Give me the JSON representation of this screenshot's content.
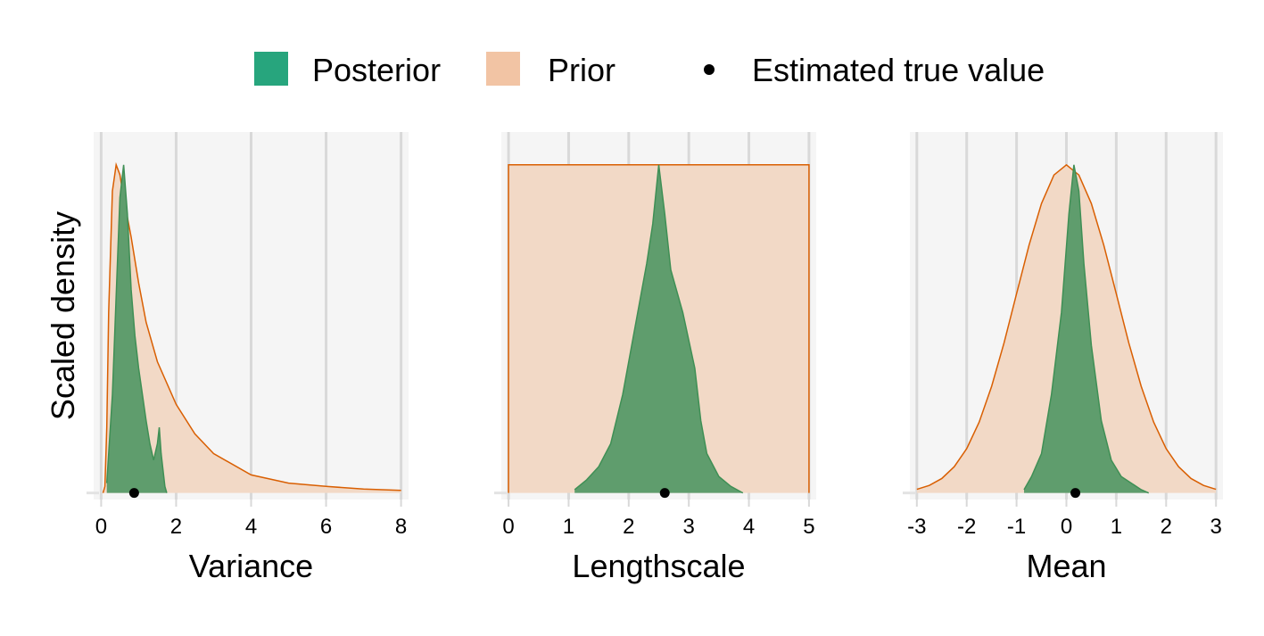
{
  "legend": {
    "entries": [
      {
        "label": "Posterior",
        "color": "#27a57d",
        "shape": "square"
      },
      {
        "label": "Prior",
        "color": "#f2c4a4",
        "shape": "square"
      },
      {
        "label": "Estimated true value",
        "color": "#000000",
        "shape": "dot"
      }
    ]
  },
  "chart_data": [
    {
      "type": "density",
      "x_label": "Variance",
      "y_label": "Scaled density",
      "xlim": [
        -0.2,
        8.2
      ],
      "ylim": [
        -0.02,
        1.1
      ],
      "xticks": [
        0,
        2,
        4,
        6,
        8
      ],
      "grid": true,
      "series": [
        {
          "color": "#f2d9c6",
          "line_color": "#d95f02",
          "x": [
            0.05,
            0.1,
            0.15,
            0.2,
            0.3,
            0.4,
            0.5,
            0.6,
            0.8,
            1.0,
            1.2,
            1.5,
            2,
            2.5,
            3,
            4,
            5,
            6,
            7,
            8
          ],
          "values": [
            0,
            0.02,
            0.2,
            0.55,
            0.92,
            1.0,
            0.97,
            0.9,
            0.78,
            0.64,
            0.52,
            0.4,
            0.27,
            0.18,
            0.12,
            0.055,
            0.03,
            0.02,
            0.012,
            0.008
          ]
        },
        {
          "color": "#5f9d6d",
          "line_color": "#3f8f55",
          "x": [
            0.15,
            0.3,
            0.4,
            0.5,
            0.6,
            0.7,
            0.8,
            0.9,
            1.0,
            1.1,
            1.2,
            1.3,
            1.4,
            1.5,
            1.55,
            1.6,
            1.7,
            1.75
          ],
          "values": [
            0.03,
            0.3,
            0.6,
            0.9,
            1.0,
            0.85,
            0.62,
            0.48,
            0.38,
            0.3,
            0.22,
            0.15,
            0.1,
            0.15,
            0.2,
            0.12,
            0.02,
            0
          ]
        }
      ],
      "points": {
        "color": "#000000",
        "x": [
          0.88
        ],
        "values": [
          0
        ]
      }
    },
    {
      "type": "density",
      "x_label": "Lengthscale",
      "xlim": [
        -0.12,
        5.12
      ],
      "ylim": [
        -0.02,
        1.1
      ],
      "xticks": [
        0,
        1,
        2,
        3,
        4,
        5
      ],
      "grid": true,
      "series": [
        {
          "color": "#f2d9c6",
          "line_color": "#d95f02",
          "x": [
            0,
            0,
            5,
            5
          ],
          "values": [
            0,
            1,
            1,
            0
          ]
        },
        {
          "color": "#5f9d6d",
          "line_color": "#3f8f55",
          "x": [
            1.1,
            1.3,
            1.5,
            1.7,
            1.9,
            2.1,
            2.3,
            2.4,
            2.5,
            2.6,
            2.7,
            2.9,
            3.1,
            3.2,
            3.3,
            3.5,
            3.7,
            3.9
          ],
          "values": [
            0.01,
            0.04,
            0.08,
            0.15,
            0.3,
            0.5,
            0.7,
            0.82,
            1.0,
            0.85,
            0.68,
            0.55,
            0.38,
            0.22,
            0.12,
            0.05,
            0.02,
            0
          ]
        }
      ],
      "points": {
        "color": "#000000",
        "x": [
          2.6
        ],
        "values": [
          0
        ]
      }
    },
    {
      "type": "density",
      "x_label": "Mean",
      "xlim": [
        -3.14,
        3.14
      ],
      "ylim": [
        -0.02,
        1.1
      ],
      "xticks": [
        -3,
        -2,
        -1,
        0,
        1,
        2,
        3
      ],
      "grid": true,
      "series": [
        {
          "color": "#f2d9c6",
          "line_color": "#d95f02",
          "x": [
            -3,
            -2.75,
            -2.5,
            -2.25,
            -2,
            -1.75,
            -1.5,
            -1.25,
            -1,
            -0.75,
            -0.5,
            -0.25,
            0,
            0.25,
            0.5,
            0.75,
            1,
            1.25,
            1.5,
            1.75,
            2,
            2.25,
            2.5,
            2.75,
            3
          ],
          "values": [
            0.011,
            0.023,
            0.044,
            0.08,
            0.135,
            0.216,
            0.325,
            0.458,
            0.607,
            0.755,
            0.882,
            0.969,
            1,
            0.969,
            0.882,
            0.755,
            0.607,
            0.458,
            0.325,
            0.216,
            0.135,
            0.08,
            0.044,
            0.023,
            0.011
          ]
        },
        {
          "color": "#5f9d6d",
          "line_color": "#3f8f55",
          "x": [
            -0.85,
            -0.7,
            -0.5,
            -0.3,
            -0.1,
            0.05,
            0.15,
            0.25,
            0.35,
            0.5,
            0.7,
            0.9,
            1.1,
            1.3,
            1.5,
            1.65
          ],
          "values": [
            0.01,
            0.05,
            0.12,
            0.3,
            0.55,
            0.85,
            1.0,
            0.92,
            0.7,
            0.45,
            0.22,
            0.1,
            0.05,
            0.03,
            0.01,
            0
          ]
        }
      ],
      "points": {
        "color": "#000000",
        "x": [
          0.18
        ],
        "values": [
          0
        ]
      }
    }
  ]
}
